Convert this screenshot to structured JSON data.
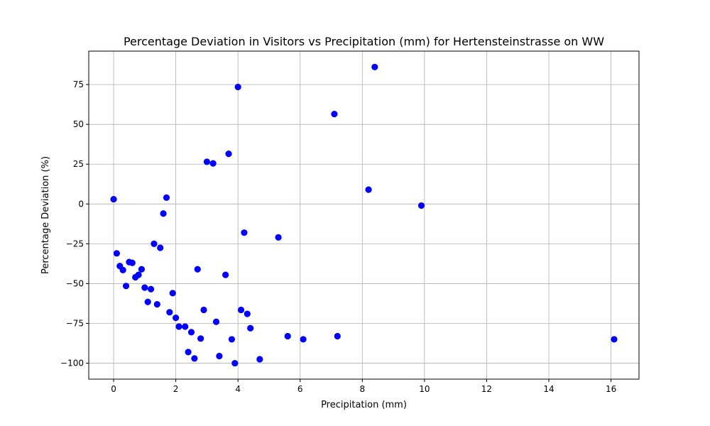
{
  "chart_data": {
    "type": "scatter",
    "title": "Percentage Deviation in Visitors vs Precipitation (mm) for Hertensteinstrasse on WW",
    "xlabel": "Precipitation (mm)",
    "ylabel": "Percentage Deviation (%)",
    "xlim": [
      -0.8,
      16.9
    ],
    "ylim": [
      -110,
      96
    ],
    "xticks": [
      0,
      2,
      4,
      6,
      8,
      10,
      12,
      14,
      16
    ],
    "yticks": [
      -100,
      -75,
      -50,
      -25,
      0,
      25,
      50,
      75
    ],
    "xtick_labels": [
      "0",
      "2",
      "4",
      "6",
      "8",
      "10",
      "12",
      "14",
      "16"
    ],
    "ytick_labels": [
      "−100",
      "−75",
      "−50",
      "−25",
      "0",
      "25",
      "50",
      "75"
    ],
    "grid": true,
    "marker_color": "#0000ff",
    "series": [
      {
        "points": [
          [
            0.0,
            3.0
          ],
          [
            0.1,
            -31.0
          ],
          [
            0.2,
            -39.0
          ],
          [
            0.3,
            -41.5
          ],
          [
            0.4,
            -51.5
          ],
          [
            0.5,
            -36.5
          ],
          [
            0.6,
            -37.0
          ],
          [
            0.7,
            -46.0
          ],
          [
            0.8,
            -44.5
          ],
          [
            0.9,
            -41.0
          ],
          [
            1.0,
            -52.5
          ],
          [
            1.1,
            -61.5
          ],
          [
            1.2,
            -53.5
          ],
          [
            1.3,
            -25.0
          ],
          [
            1.4,
            -63.0
          ],
          [
            1.5,
            -27.5
          ],
          [
            1.6,
            -6.0
          ],
          [
            1.7,
            4.0
          ],
          [
            1.8,
            -68.0
          ],
          [
            1.9,
            -56.0
          ],
          [
            2.0,
            -71.5
          ],
          [
            2.1,
            -77.0
          ],
          [
            2.3,
            -77.0
          ],
          [
            2.4,
            -93.0
          ],
          [
            2.5,
            -80.5
          ],
          [
            2.6,
            -97.0
          ],
          [
            2.7,
            -41.0
          ],
          [
            2.8,
            -84.5
          ],
          [
            2.9,
            -66.5
          ],
          [
            3.0,
            26.5
          ],
          [
            3.2,
            25.5
          ],
          [
            3.3,
            -74.0
          ],
          [
            3.4,
            -95.5
          ],
          [
            3.6,
            -44.5
          ],
          [
            3.7,
            31.5
          ],
          [
            3.8,
            -85.0
          ],
          [
            3.9,
            -100.0
          ],
          [
            4.0,
            73.5
          ],
          [
            4.1,
            -66.5
          ],
          [
            4.2,
            -18.0
          ],
          [
            4.3,
            -69.0
          ],
          [
            4.4,
            -78.0
          ],
          [
            4.7,
            -97.5
          ],
          [
            5.3,
            -21.0
          ],
          [
            5.6,
            -83.0
          ],
          [
            6.1,
            -85.0
          ],
          [
            7.1,
            56.5
          ],
          [
            7.2,
            -83.0
          ],
          [
            8.2,
            9.0
          ],
          [
            8.4,
            86.0
          ],
          [
            9.9,
            -1.0
          ],
          [
            16.1,
            -85.0
          ]
        ]
      }
    ]
  }
}
